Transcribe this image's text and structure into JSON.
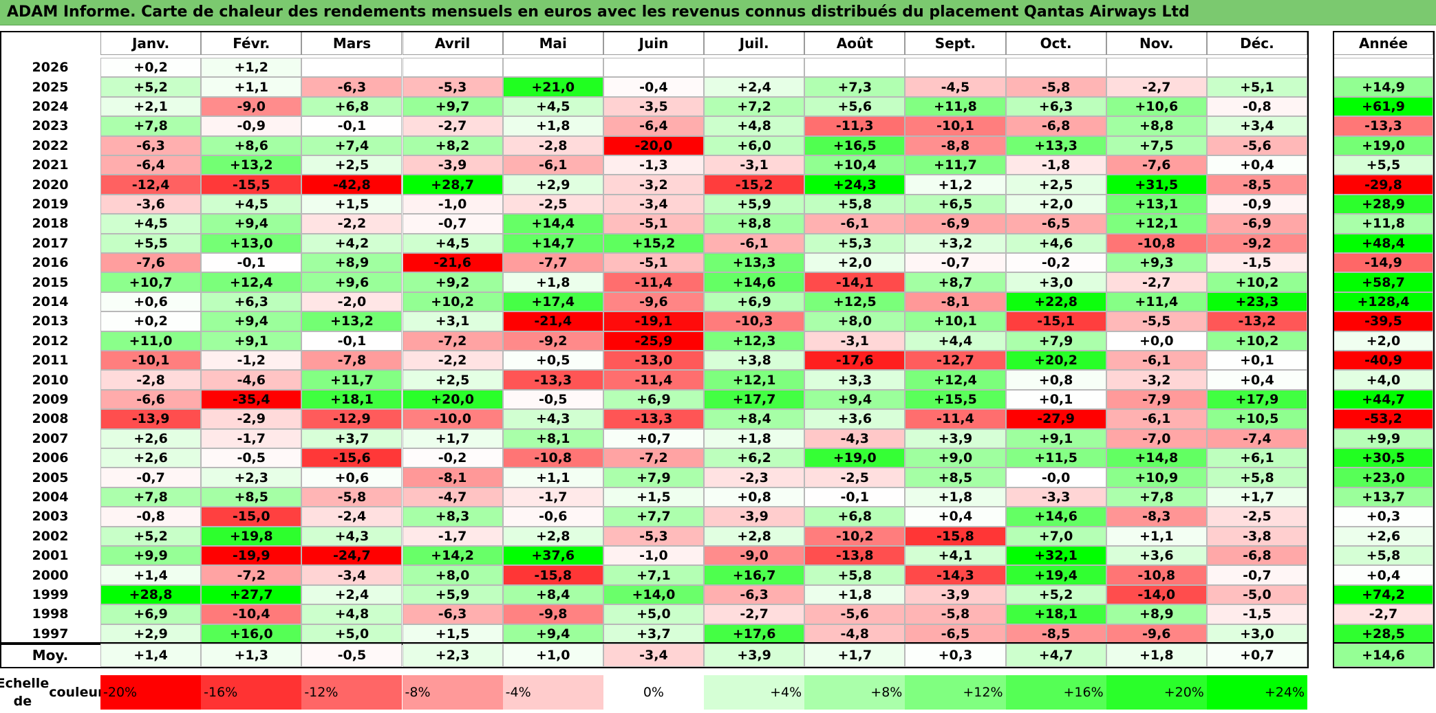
{
  "title": "ADAM Informe. Carte de chaleur des rendements mensuels en euros avec les revenus connus distribués du placement Qantas Airways Ltd",
  "chart_data": {
    "type": "heatmap",
    "months": [
      "Janv.",
      "Févr.",
      "Mars",
      "Avril",
      "Mai",
      "Juin",
      "Juil.",
      "Août",
      "Sept.",
      "Oct.",
      "Nov.",
      "Déc."
    ],
    "year_column_label": "Année",
    "rows": [
      {
        "year": "2026",
        "values": [
          "+0,2",
          "+1,2",
          "",
          "",
          "",
          "",
          "",
          "",
          "",
          "",
          "",
          ""
        ],
        "annual": ""
      },
      {
        "year": "2025",
        "values": [
          "+5,2",
          "+1,1",
          "-6,3",
          "-5,3",
          "+21,0",
          "-0,4",
          "+2,4",
          "+7,3",
          "-4,5",
          "-5,8",
          "-2,7",
          "+5,1"
        ],
        "annual": "+14,9"
      },
      {
        "year": "2024",
        "values": [
          "+2,1",
          "-9,0",
          "+6,8",
          "+9,7",
          "+4,5",
          "-3,5",
          "+7,2",
          "+5,6",
          "+11,8",
          "+6,3",
          "+10,6",
          "-0,8"
        ],
        "annual": "+61,9"
      },
      {
        "year": "2023",
        "values": [
          "+7,8",
          "-0,9",
          "-0,1",
          "-2,7",
          "+1,8",
          "-6,4",
          "+4,8",
          "-11,3",
          "-10,1",
          "-6,8",
          "+8,8",
          "+3,4"
        ],
        "annual": "-13,3"
      },
      {
        "year": "2022",
        "values": [
          "-6,3",
          "+8,6",
          "+7,4",
          "+8,2",
          "-2,8",
          "-20,0",
          "+6,0",
          "+16,5",
          "-8,8",
          "+13,3",
          "+7,5",
          "-5,6"
        ],
        "annual": "+19,0"
      },
      {
        "year": "2021",
        "values": [
          "-6,4",
          "+13,2",
          "+2,5",
          "-3,9",
          "-6,1",
          "-1,3",
          "-3,1",
          "+10,4",
          "+11,7",
          "-1,8",
          "-7,6",
          "+0,4"
        ],
        "annual": "+5,5"
      },
      {
        "year": "2020",
        "values": [
          "-12,4",
          "-15,5",
          "-42,8",
          "+28,7",
          "+2,9",
          "-3,2",
          "-15,2",
          "+24,3",
          "+1,2",
          "+2,5",
          "+31,5",
          "-8,5"
        ],
        "annual": "-29,8"
      },
      {
        "year": "2019",
        "values": [
          "-3,6",
          "+4,5",
          "+1,5",
          "-1,0",
          "-2,5",
          "-3,4",
          "+5,9",
          "+5,8",
          "+6,5",
          "+2,0",
          "+13,1",
          "-0,9"
        ],
        "annual": "+28,9"
      },
      {
        "year": "2018",
        "values": [
          "+4,5",
          "+9,4",
          "-2,2",
          "-0,7",
          "+14,4",
          "-5,1",
          "+8,8",
          "-6,1",
          "-6,9",
          "-6,5",
          "+12,1",
          "-6,9"
        ],
        "annual": "+11,8"
      },
      {
        "year": "2017",
        "values": [
          "+5,5",
          "+13,0",
          "+4,2",
          "+4,5",
          "+14,7",
          "+15,2",
          "-6,1",
          "+5,3",
          "+3,2",
          "+4,6",
          "-10,8",
          "-9,2"
        ],
        "annual": "+48,4"
      },
      {
        "year": "2016",
        "values": [
          "-7,6",
          "-0,1",
          "+8,9",
          "-21,6",
          "-7,7",
          "-5,1",
          "+13,3",
          "+2,0",
          "-0,7",
          "-0,2",
          "+9,3",
          "-1,5"
        ],
        "annual": "-14,9"
      },
      {
        "year": "2015",
        "values": [
          "+10,7",
          "+12,4",
          "+9,6",
          "+9,2",
          "+1,8",
          "-11,4",
          "+14,6",
          "-14,1",
          "+8,7",
          "+3,0",
          "-2,7",
          "+10,2"
        ],
        "annual": "+58,7"
      },
      {
        "year": "2014",
        "values": [
          "+0,6",
          "+6,3",
          "-2,0",
          "+10,2",
          "+17,4",
          "-9,6",
          "+6,9",
          "+12,5",
          "-8,1",
          "+22,8",
          "+11,4",
          "+23,3"
        ],
        "annual": "+128,4"
      },
      {
        "year": "2013",
        "values": [
          "+0,2",
          "+9,4",
          "+13,2",
          "+3,1",
          "-21,4",
          "-19,1",
          "-10,3",
          "+8,0",
          "+10,1",
          "-15,1",
          "-5,5",
          "-13,2"
        ],
        "annual": "-39,5"
      },
      {
        "year": "2012",
        "values": [
          "+11,0",
          "+9,1",
          "-0,1",
          "-7,2",
          "-9,2",
          "-25,9",
          "+12,3",
          "-3,1",
          "+4,4",
          "+7,9",
          "+0,0",
          "+10,2"
        ],
        "annual": "+2,0"
      },
      {
        "year": "2011",
        "values": [
          "-10,1",
          "-1,2",
          "-7,8",
          "-2,2",
          "+0,5",
          "-13,0",
          "+3,8",
          "-17,6",
          "-12,7",
          "+20,2",
          "-6,1",
          "+0,1"
        ],
        "annual": "-40,9"
      },
      {
        "year": "2010",
        "values": [
          "-2,8",
          "-4,6",
          "+11,7",
          "+2,5",
          "-13,3",
          "-11,4",
          "+12,1",
          "+3,3",
          "+12,4",
          "+0,8",
          "-3,2",
          "+0,4"
        ],
        "annual": "+4,0"
      },
      {
        "year": "2009",
        "values": [
          "-6,6",
          "-35,4",
          "+18,1",
          "+20,0",
          "-0,5",
          "+6,9",
          "+17,7",
          "+9,4",
          "+15,5",
          "+0,1",
          "-7,9",
          "+17,9"
        ],
        "annual": "+44,7"
      },
      {
        "year": "2008",
        "values": [
          "-13,9",
          "-2,9",
          "-12,9",
          "-10,0",
          "+4,3",
          "-13,3",
          "+8,4",
          "+3,6",
          "-11,4",
          "-27,9",
          "-6,1",
          "+10,5"
        ],
        "annual": "-53,2"
      },
      {
        "year": "2007",
        "values": [
          "+2,6",
          "-1,7",
          "+3,7",
          "+1,7",
          "+8,1",
          "+0,7",
          "+1,8",
          "-4,3",
          "+3,9",
          "+9,1",
          "-7,0",
          "-7,4"
        ],
        "annual": "+9,9"
      },
      {
        "year": "2006",
        "values": [
          "+2,6",
          "-0,5",
          "-15,6",
          "-0,2",
          "-10,8",
          "-7,2",
          "+6,2",
          "+19,0",
          "+9,0",
          "+11,5",
          "+14,8",
          "+6,1"
        ],
        "annual": "+30,5"
      },
      {
        "year": "2005",
        "values": [
          "-0,7",
          "+2,3",
          "+0,6",
          "-8,1",
          "+1,1",
          "+7,9",
          "-2,3",
          "-2,5",
          "+8,5",
          "-0,0",
          "+10,9",
          "+5,8"
        ],
        "annual": "+23,0"
      },
      {
        "year": "2004",
        "values": [
          "+7,8",
          "+8,5",
          "-5,8",
          "-4,7",
          "-1,7",
          "+1,5",
          "+0,8",
          "-0,1",
          "+1,8",
          "-3,3",
          "+7,8",
          "+1,7"
        ],
        "annual": "+13,7"
      },
      {
        "year": "2003",
        "values": [
          "-0,8",
          "-15,0",
          "-2,4",
          "+8,3",
          "-0,6",
          "+7,7",
          "-3,9",
          "+6,8",
          "+0,4",
          "+14,6",
          "-8,3",
          "-2,5"
        ],
        "annual": "+0,3"
      },
      {
        "year": "2002",
        "values": [
          "+5,2",
          "+19,8",
          "+4,3",
          "-1,7",
          "+2,8",
          "-5,3",
          "+2,8",
          "-10,2",
          "-15,8",
          "+7,0",
          "+1,1",
          "-3,8"
        ],
        "annual": "+2,6"
      },
      {
        "year": "2001",
        "values": [
          "+9,9",
          "-19,9",
          "-24,7",
          "+14,2",
          "+37,6",
          "-1,0",
          "-9,0",
          "-13,8",
          "+4,1",
          "+32,1",
          "+3,6",
          "-6,8"
        ],
        "annual": "+5,8"
      },
      {
        "year": "2000",
        "values": [
          "+1,4",
          "-7,2",
          "-3,4",
          "+8,0",
          "-15,8",
          "+7,1",
          "+16,7",
          "+5,8",
          "-14,3",
          "+19,4",
          "-10,8",
          "-0,7"
        ],
        "annual": "+0,4"
      },
      {
        "year": "1999",
        "values": [
          "+28,8",
          "+27,7",
          "+2,4",
          "+5,9",
          "+8,4",
          "+14,0",
          "-6,3",
          "+1,8",
          "-3,9",
          "+5,2",
          "-14,0",
          "-5,0"
        ],
        "annual": "+74,2"
      },
      {
        "year": "1998",
        "values": [
          "+6,9",
          "-10,4",
          "+4,8",
          "-6,3",
          "-9,8",
          "+5,0",
          "-2,7",
          "-5,6",
          "-5,8",
          "+18,1",
          "+8,9",
          "-1,5"
        ],
        "annual": "-2,7"
      },
      {
        "year": "1997",
        "values": [
          "+2,9",
          "+16,0",
          "+5,0",
          "+1,5",
          "+9,4",
          "+3,7",
          "+17,6",
          "-4,8",
          "-6,5",
          "-8,5",
          "-9,6",
          "+3,0"
        ],
        "annual": "+28,5"
      }
    ],
    "average": {
      "label": "Moy.",
      "values": [
        "+1,4",
        "+1,3",
        "-0,5",
        "+2,3",
        "+1,0",
        "-3,4",
        "+3,9",
        "+1,7",
        "+0,3",
        "+4,7",
        "+1,8",
        "+0,7"
      ],
      "annual": "+14,6"
    },
    "scale": {
      "label_line1": "Echelle de",
      "label_line2": "couleur",
      "steps": [
        "-20%",
        "-16%",
        "-12%",
        "-8%",
        "-4%",
        "0%",
        "+4%",
        "+8%",
        "+12%",
        "+16%",
        "+20%",
        "+24%"
      ]
    },
    "colors": {
      "title_bg": "#7bc96f",
      "neg_max": "#ff0000",
      "zero": "#ffffff",
      "pos_max": "#00ff00"
    }
  }
}
